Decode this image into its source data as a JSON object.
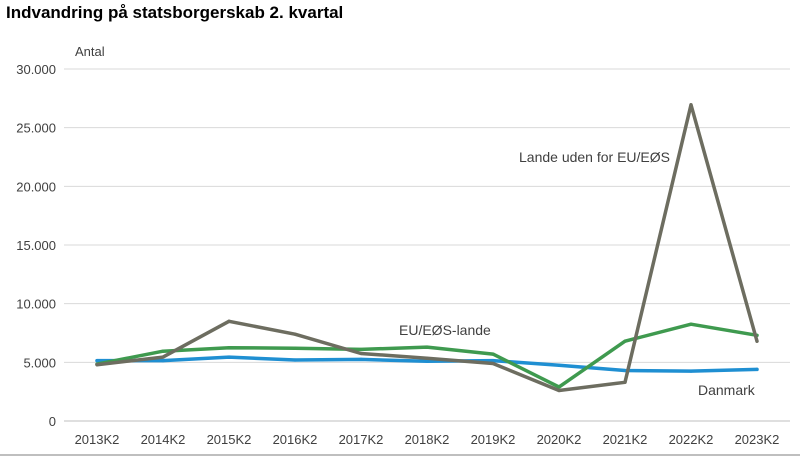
{
  "title": "Indvandring på statsborgerskab 2. kvartal",
  "chart_data": {
    "type": "line",
    "title": "Indvandring på statsborgerskab 2. kvartal",
    "ylabel": "Antal",
    "ylim": [
      0,
      30000
    ],
    "yticks": [
      0,
      5000,
      10000,
      15000,
      20000,
      25000,
      30000
    ],
    "ytick_labels": [
      "0",
      "5.000",
      "10.000",
      "15.000",
      "20.000",
      "25.000",
      "30.000"
    ],
    "categories": [
      "2013K2",
      "2014K2",
      "2015K2",
      "2016K2",
      "2017K2",
      "2018K2",
      "2019K2",
      "2020K2",
      "2021K2",
      "2022K2",
      "2023K2"
    ],
    "grid": true,
    "legend": "none",
    "series": [
      {
        "name": "Danmark",
        "color": "#1f8fd2",
        "values": [
          5150,
          5150,
          5450,
          5200,
          5250,
          5100,
          5150,
          4750,
          4300,
          4250,
          4400
        ]
      },
      {
        "name": "EU/EØS-lande",
        "color": "#3f9a4f",
        "values": [
          4850,
          5950,
          6250,
          6200,
          6100,
          6300,
          5700,
          2900,
          6800,
          8250,
          7300
        ]
      },
      {
        "name": "Lande uden for EU/EØS",
        "color": "#6d6d60",
        "values": [
          4800,
          5450,
          8500,
          7400,
          5750,
          5350,
          4900,
          2600,
          3300,
          26950,
          6800
        ]
      }
    ],
    "annotations": [
      {
        "text": "Lande uden for EU/EØS",
        "series": 2
      },
      {
        "text": "EU/EØS-lande",
        "series": 1
      },
      {
        "text": "Danmark",
        "series": 0
      }
    ]
  }
}
